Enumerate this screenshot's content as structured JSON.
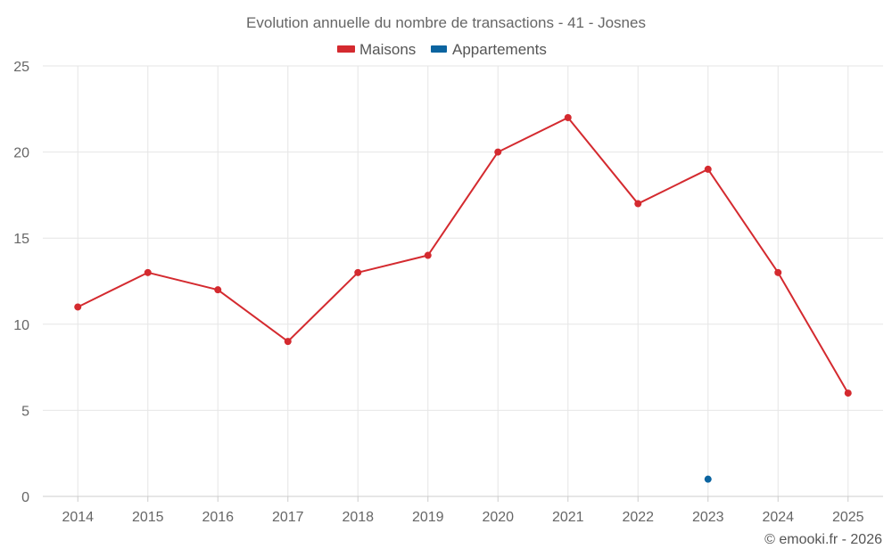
{
  "chart_data": {
    "type": "line",
    "title": "Evolution annuelle du nombre de transactions - 41 - Josnes",
    "categories": [
      "2014",
      "2015",
      "2016",
      "2017",
      "2018",
      "2019",
      "2020",
      "2021",
      "2022",
      "2023",
      "2024",
      "2025"
    ],
    "series": [
      {
        "name": "Maisons",
        "color": "#d42a2f",
        "values": [
          11,
          13,
          12,
          9,
          13,
          14,
          20,
          22,
          17,
          19,
          13,
          6
        ]
      },
      {
        "name": "Appartements",
        "color": "#0b64a0",
        "values": [
          null,
          null,
          null,
          null,
          null,
          null,
          null,
          null,
          null,
          1,
          null,
          null
        ]
      }
    ],
    "ylim": [
      0,
      25
    ],
    "yticks": [
      0,
      5,
      10,
      15,
      20,
      25
    ],
    "xlabel": "",
    "ylabel": "",
    "grid": true,
    "legend": "top-center"
  },
  "credit": "© emooki.fr - 2026"
}
